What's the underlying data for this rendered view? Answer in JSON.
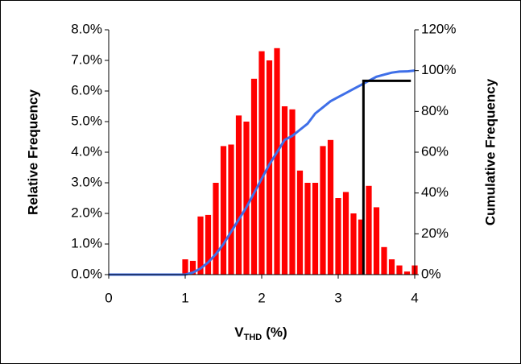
{
  "chart_data": {
    "type": "histogram",
    "bins": [
      0.95,
      1.05,
      1.15,
      1.25,
      1.35,
      1.45,
      1.55,
      1.65,
      1.75,
      1.85,
      1.95,
      2.05,
      2.15,
      2.25,
      2.35,
      2.45,
      2.55,
      2.65,
      2.75,
      2.85,
      2.95,
      3.05,
      3.15,
      3.25,
      3.35,
      3.45,
      3.55,
      3.65,
      3.75,
      3.85,
      3.95,
      4.05
    ],
    "values": [
      0.5,
      0.45,
      1.9,
      1.95,
      3.0,
      4.2,
      4.25,
      5.2,
      5.0,
      6.4,
      7.3,
      7.0,
      7.4,
      5.5,
      5.4,
      3.4,
      3.0,
      3.0,
      4.2,
      4.4,
      2.5,
      2.7,
      2.0,
      1.8,
      2.9,
      2.2,
      0.9,
      0.5,
      0.3,
      0.1,
      0.3
    ],
    "color": "#ff0000",
    "lines": [
      {
        "color": "#3f6fe8",
        "axis": "y2",
        "x": [
          0,
          1.0,
          1.1,
          1.2,
          1.3,
          1.4,
          1.5,
          1.6,
          1.7,
          1.8,
          1.9,
          2.0,
          2.1,
          2.2,
          2.3,
          2.4,
          2.5,
          2.6,
          2.7,
          2.8,
          2.9,
          3.0,
          3.1,
          3.2,
          3.3,
          3.4,
          3.5,
          3.6,
          3.7,
          3.8,
          3.9,
          4.0
        ],
        "values": [
          0,
          0,
          1,
          3,
          6,
          10,
          15,
          21,
          27,
          33,
          40,
          47,
          54,
          60,
          66,
          68,
          71,
          74,
          79,
          82,
          85,
          87,
          89,
          91,
          93,
          95,
          97,
          98,
          99,
          99.5,
          99.6,
          100
        ]
      },
      {
        "color": "#000000",
        "axis": "y2",
        "x": [
          3.33,
          3.33,
          3.95
        ],
        "values": [
          0,
          95,
          95
        ]
      }
    ],
    "ylabel": "Relative Frequency",
    "y2label": "Cumulative Frequency",
    "xlabel": "V",
    "xlabel_subscript": "THD",
    "xlabel_suffix": "(%)",
    "xlim": [
      0,
      4
    ],
    "xticks": [
      0,
      1,
      2,
      3,
      4
    ],
    "ylim": [
      0,
      8
    ],
    "yticks": [
      {
        "value": 0,
        "label": "0.0%"
      },
      {
        "value": 1,
        "label": "1.0%"
      },
      {
        "value": 2,
        "label": "2.0%"
      },
      {
        "value": 3,
        "label": "3.0%"
      },
      {
        "value": 4,
        "label": "4.0%"
      },
      {
        "value": 5,
        "label": "5.0%"
      },
      {
        "value": 6,
        "label": "6.0%"
      },
      {
        "value": 7,
        "label": "7.0%"
      },
      {
        "value": 8,
        "label": "8.0%"
      }
    ],
    "y2lim": [
      0,
      120
    ],
    "y2ticks": [
      {
        "value": 0,
        "label": "0%"
      },
      {
        "value": 20,
        "label": "20%"
      },
      {
        "value": 40,
        "label": "40%"
      },
      {
        "value": 60,
        "label": "60%"
      },
      {
        "value": 80,
        "label": "80%"
      },
      {
        "value": 100,
        "label": "100%"
      },
      {
        "value": 120,
        "label": "120%"
      }
    ],
    "grid": false
  }
}
